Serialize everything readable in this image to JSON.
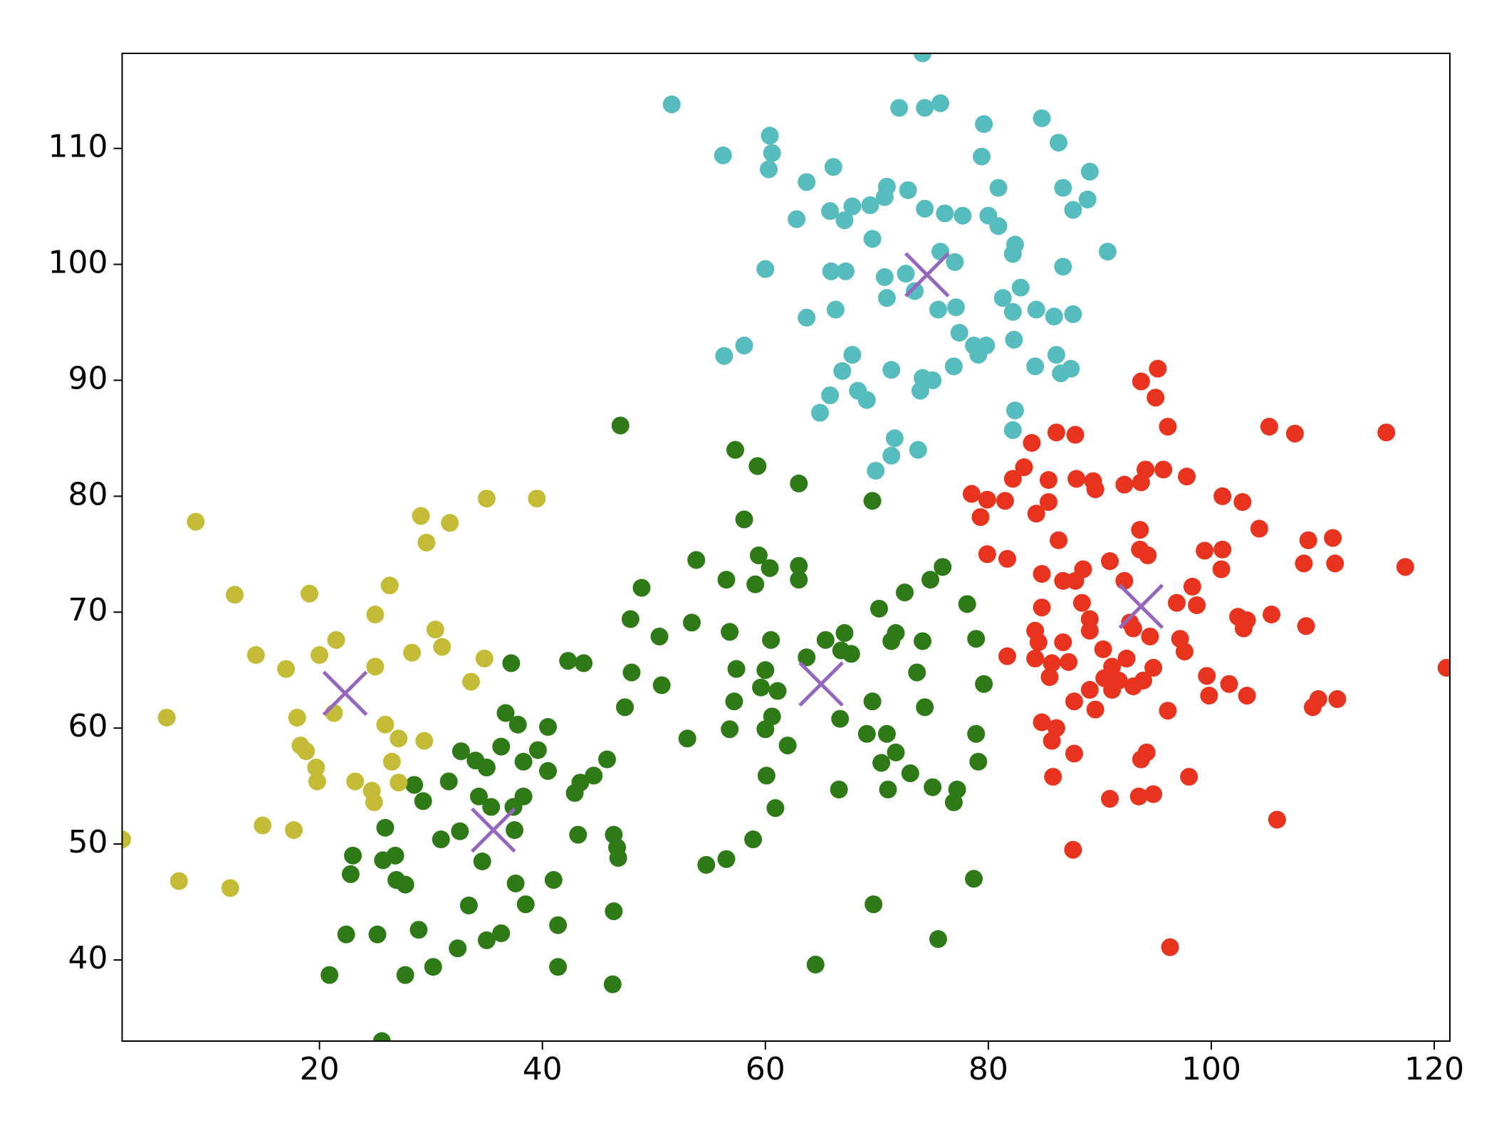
{
  "chart_data": {
    "type": "scatter",
    "xlim": [
      2.3,
      121.4
    ],
    "ylim": [
      33.0,
      118.2
    ],
    "xticks": [
      20,
      40,
      60,
      80,
      100,
      120
    ],
    "yticks": [
      40,
      50,
      60,
      70,
      80,
      90,
      100,
      110
    ],
    "grid": false,
    "series": [
      {
        "color": "#56bcbd",
        "marker": "o",
        "x": [
          51.6,
          74.1,
          72.0,
          74.3,
          75.7,
          60.4,
          60.6,
          60.3,
          56.2,
          66.1,
          63.7,
          79.6,
          84.8,
          86.3,
          79.4,
          89.1,
          80.9,
          86.7,
          88.9,
          87.6,
          70.9,
          72.8,
          70.7,
          69.4,
          67.8,
          65.8,
          67.1,
          62.8,
          74.3,
          76.1,
          77.7,
          80.0,
          80.9,
          69.6,
          82.4,
          82.2,
          90.7,
          75.7,
          77.0,
          60.0,
          65.9,
          67.2,
          70.7,
          72.6,
          82.9,
          86.7,
          70.9,
          73.4,
          81.3,
          75.5,
          77.1,
          82.2,
          84.3,
          85.9,
          87.6,
          66.3,
          63.7,
          82.3,
          77.4,
          78.7,
          79.8,
          79.1,
          86.1,
          56.3,
          58.1,
          67.8,
          66.9,
          71.3,
          76.9,
          84.2,
          87.4,
          86.5,
          74.1,
          75.0,
          73.9,
          68.3,
          69.1,
          65.8,
          64.9,
          82.4,
          82.2,
          71.6,
          73.7,
          71.3,
          69.9
        ],
        "y": [
          113.8,
          118.2,
          113.5,
          113.5,
          113.9,
          111.1,
          109.6,
          108.2,
          109.4,
          108.4,
          107.1,
          112.1,
          112.6,
          110.5,
          109.3,
          108.0,
          106.6,
          106.6,
          105.6,
          104.7,
          106.7,
          106.4,
          105.8,
          105.1,
          105.0,
          104.6,
          103.8,
          103.9,
          104.8,
          104.4,
          104.2,
          104.2,
          103.3,
          102.2,
          101.7,
          100.9,
          101.1,
          101.1,
          100.2,
          99.6,
          99.4,
          99.4,
          98.9,
          99.2,
          98.0,
          99.8,
          97.1,
          97.7,
          97.1,
          96.1,
          96.3,
          95.9,
          96.1,
          95.5,
          95.7,
          96.1,
          95.4,
          93.5,
          94.1,
          93.0,
          93.0,
          92.2,
          92.2,
          92.1,
          93.0,
          92.2,
          90.8,
          90.9,
          91.2,
          91.2,
          91.0,
          90.6,
          90.2,
          90.0,
          89.1,
          89.1,
          88.3,
          88.7,
          87.2,
          87.4,
          85.7,
          85.0,
          84.0,
          83.5,
          82.2
        ]
      },
      {
        "color": "#e8331f",
        "marker": "o",
        "x": [
          95.2,
          93.7,
          95.0,
          96.1,
          105.2,
          107.5,
          115.7,
          86.1,
          87.8,
          83.9,
          83.2,
          82.2,
          85.4,
          87.9,
          89.4,
          89.6,
          92.2,
          94.1,
          95.7,
          97.8,
          93.7,
          78.5,
          79.9,
          81.5,
          85.4,
          84.3,
          79.3,
          101.0,
          102.8,
          104.3,
          93.6,
          86.3,
          99.4,
          101.0,
          93.6,
          94.3,
          108.7,
          110.9,
          108.3,
          111.1,
          117.4,
          79.9,
          81.7,
          90.9,
          84.8,
          86.7,
          88.5,
          87.8,
          100.9,
          98.3,
          92.2,
          96.9,
          98.7,
          88.4,
          84.8,
          89.1,
          92.7,
          102.4,
          105.4,
          103.2,
          102.9,
          108.5,
          84.2,
          89.1,
          93.0,
          94.5,
          97.2,
          86.7,
          84.5,
          90.3,
          97.6,
          81.7,
          84.2,
          85.7,
          87.2,
          92.4,
          91.1,
          94.8,
          121.1,
          85.5,
          90.4,
          91.7,
          93.9,
          93.0,
          99.6,
          101.6,
          89.1,
          91.1,
          99.8,
          103.2,
          87.7,
          89.6,
          109.1,
          111.3,
          109.6,
          96.1,
          84.8,
          86.1,
          85.7,
          87.7,
          94.2,
          93.7,
          85.8,
          98.0,
          94.8,
          93.5,
          90.9,
          105.9,
          87.6,
          96.3
        ],
        "y": [
          91.0,
          89.9,
          88.5,
          86.0,
          86.0,
          85.4,
          85.5,
          85.5,
          85.3,
          84.6,
          82.5,
          81.5,
          81.4,
          81.5,
          81.3,
          80.6,
          81.0,
          82.3,
          82.3,
          81.7,
          81.2,
          80.2,
          79.7,
          79.6,
          79.5,
          78.5,
          78.2,
          80.0,
          79.5,
          77.2,
          77.1,
          76.2,
          75.3,
          75.4,
          75.4,
          74.9,
          76.2,
          76.4,
          74.2,
          74.2,
          73.9,
          75.0,
          74.6,
          74.4,
          73.3,
          72.7,
          73.7,
          72.7,
          73.7,
          72.2,
          72.7,
          70.8,
          70.6,
          70.8,
          70.4,
          69.4,
          69.1,
          69.6,
          69.8,
          69.3,
          68.6,
          68.8,
          68.4,
          68.4,
          68.6,
          67.9,
          67.7,
          67.4,
          67.4,
          66.8,
          66.6,
          66.2,
          66.0,
          65.6,
          65.7,
          66.0,
          65.3,
          65.2,
          65.2,
          64.4,
          64.3,
          64.1,
          64.1,
          63.6,
          64.5,
          63.8,
          63.3,
          63.3,
          62.8,
          62.8,
          62.3,
          61.6,
          61.8,
          62.5,
          62.5,
          61.5,
          60.5,
          60.0,
          58.9,
          57.8,
          57.9,
          57.3,
          55.8,
          55.8,
          54.3,
          54.1,
          53.9,
          52.1,
          49.5,
          41.1
        ]
      },
      {
        "color": "#2e7a17",
        "marker": "o",
        "x": [
          47.0,
          57.3,
          59.3,
          63.0,
          69.6,
          58.1,
          53.8,
          59.4,
          60.4,
          56.5,
          59.1,
          63.0,
          63.0,
          75.9,
          74.8,
          48.9,
          72.5,
          70.2,
          78.1,
          47.9,
          53.4,
          56.8,
          71.7,
          74.1,
          67.1,
          50.5,
          60.5,
          71.3,
          78.9,
          65.4,
          67.7,
          66.8,
          57.4,
          60.0,
          63.7,
          73.6,
          48.0,
          50.7,
          59.6,
          61.1,
          79.6,
          57.2,
          69.6,
          74.3,
          47.4,
          60.6,
          60.0,
          56.8,
          66.7,
          69.1,
          70.9,
          78.9,
          53.0,
          62.0,
          71.7,
          70.4,
          79.1,
          73.0,
          60.1,
          75.0,
          77.2,
          71.0,
          66.6,
          76.9,
          60.9,
          58.9,
          56.5,
          54.7,
          78.7,
          69.7,
          75.5,
          64.5,
          37.2,
          42.3,
          43.7,
          36.7,
          37.8,
          40.5,
          36.3,
          39.6,
          32.7,
          34.0,
          35.0,
          38.3,
          40.5,
          45.8,
          44.6,
          43.4,
          42.9,
          31.6,
          28.5,
          29.3,
          34.3,
          38.3,
          37.4,
          35.4,
          25.9,
          37.5,
          32.6,
          30.9,
          43.2,
          46.4,
          46.7,
          46.8,
          23.0,
          26.8,
          25.7,
          26.9,
          27.7,
          22.8,
          34.6,
          37.6,
          41.0,
          38.5,
          33.4,
          46.4,
          41.4,
          36.3,
          35.0,
          22.4,
          25.2,
          28.9,
          32.4,
          30.2,
          41.4,
          27.7,
          20.9,
          46.3,
          25.6
        ],
        "y": [
          86.1,
          84.0,
          82.6,
          81.1,
          79.6,
          78.0,
          74.5,
          74.9,
          73.8,
          72.8,
          72.4,
          74.0,
          72.8,
          73.9,
          72.8,
          72.1,
          71.7,
          70.3,
          70.7,
          69.4,
          69.1,
          68.3,
          68.2,
          67.5,
          68.2,
          67.9,
          67.6,
          67.5,
          67.7,
          67.6,
          66.4,
          66.7,
          65.1,
          65.0,
          66.1,
          64.8,
          64.8,
          63.7,
          63.5,
          63.2,
          63.8,
          62.3,
          62.3,
          61.8,
          61.8,
          61.0,
          59.9,
          59.9,
          60.8,
          59.5,
          59.5,
          59.5,
          59.1,
          58.5,
          57.9,
          57.0,
          57.1,
          56.1,
          55.9,
          54.9,
          54.7,
          54.7,
          54.7,
          53.6,
          53.1,
          50.4,
          48.7,
          48.2,
          47.0,
          44.8,
          41.8,
          39.6,
          65.6,
          65.8,
          65.6,
          61.3,
          60.3,
          60.1,
          58.4,
          58.1,
          58.0,
          57.2,
          56.6,
          57.1,
          56.3,
          57.3,
          55.9,
          55.3,
          54.4,
          55.4,
          55.1,
          53.7,
          54.1,
          54.1,
          53.2,
          53.2,
          51.4,
          51.2,
          51.1,
          50.4,
          50.8,
          50.8,
          49.7,
          48.8,
          49.0,
          49.0,
          48.6,
          46.9,
          46.5,
          47.4,
          48.5,
          46.6,
          46.9,
          44.8,
          44.7,
          44.2,
          43.0,
          42.3,
          41.7,
          42.2,
          42.2,
          42.6,
          41.0,
          39.4,
          39.4,
          38.7,
          38.7,
          37.9,
          33.0
        ]
      },
      {
        "color": "#c4bc37",
        "marker": "o",
        "x": [
          8.9,
          12.4,
          19.1,
          26.3,
          25.0,
          29.1,
          29.6,
          31.7,
          35.0,
          39.5,
          30.4,
          31.0,
          28.3,
          34.8,
          21.5,
          20.0,
          14.3,
          17.0,
          25.0,
          33.6,
          21.3,
          18.0,
          6.3,
          25.9,
          27.1,
          29.4,
          18.3,
          18.8,
          26.5,
          19.7,
          19.8,
          23.2,
          27.1,
          24.7,
          24.9,
          14.9,
          17.7,
          2.3,
          7.4,
          12.0
        ],
        "y": [
          77.8,
          71.5,
          71.6,
          72.3,
          69.8,
          78.3,
          76.0,
          77.7,
          79.8,
          79.8,
          68.5,
          67.0,
          66.5,
          66.0,
          67.6,
          66.3,
          66.3,
          65.1,
          65.3,
          64.0,
          61.3,
          60.9,
          60.9,
          60.3,
          59.1,
          58.9,
          58.5,
          58.0,
          57.1,
          56.6,
          55.4,
          55.4,
          55.3,
          54.6,
          53.6,
          51.6,
          51.2,
          50.4,
          46.8,
          46.2
        ]
      },
      {
        "color": "#9467bd",
        "marker": "x",
        "x": [
          22.3,
          35.6,
          65.0,
          74.5,
          93.7
        ],
        "y": [
          63.0,
          51.2,
          63.8,
          99.1,
          70.5
        ]
      }
    ]
  }
}
